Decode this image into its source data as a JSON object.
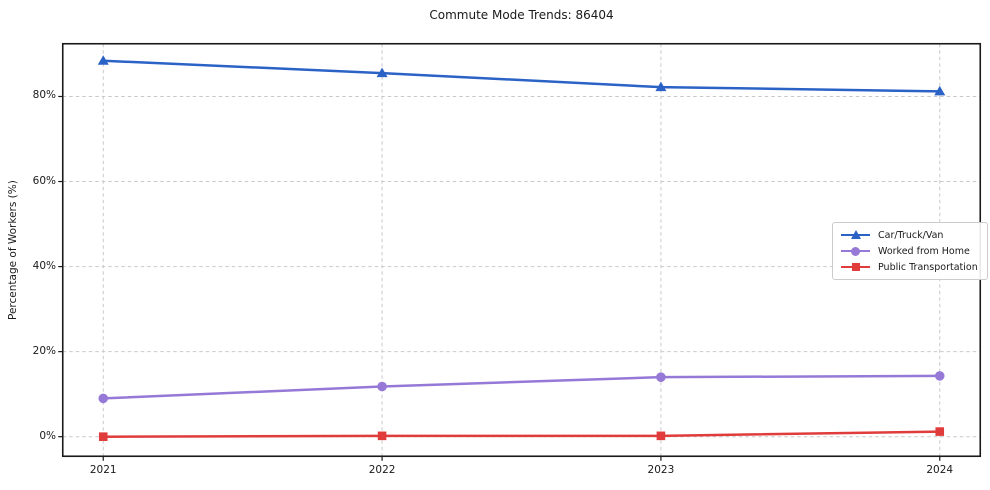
{
  "title": "Commute Mode Trends: 86404",
  "chart_data": {
    "type": "line",
    "title": "Commute Mode Trends: 86404",
    "xlabel": "",
    "ylabel": "Percentage of Workers (%)",
    "x": [
      2021,
      2022,
      2023,
      2024
    ],
    "xtick_labels": [
      "2021",
      "2022",
      "2023",
      "2024"
    ],
    "yticks": [
      0,
      20,
      40,
      60,
      80
    ],
    "ytick_labels": [
      "0%",
      "20%",
      "40%",
      "60%",
      "80%"
    ],
    "ylim": [
      -4.6,
      92.4
    ],
    "grid": true,
    "grid_style": "dashed",
    "grid_color": "#c9c9c9",
    "legend_position": "center right",
    "series": [
      {
        "name": "Car/Truck/Van",
        "values": [
          88.4,
          85.5,
          82.2,
          81.2
        ],
        "color": "#2b62c6",
        "marker": "triangle"
      },
      {
        "name": "Worked from Home",
        "values": [
          9.0,
          11.8,
          14.0,
          14.3
        ],
        "color": "#9678d7",
        "marker": "circle"
      },
      {
        "name": "Public Transportation",
        "values": [
          0.0,
          0.2,
          0.2,
          1.2
        ],
        "color": "#e13c3c",
        "marker": "square"
      }
    ]
  }
}
